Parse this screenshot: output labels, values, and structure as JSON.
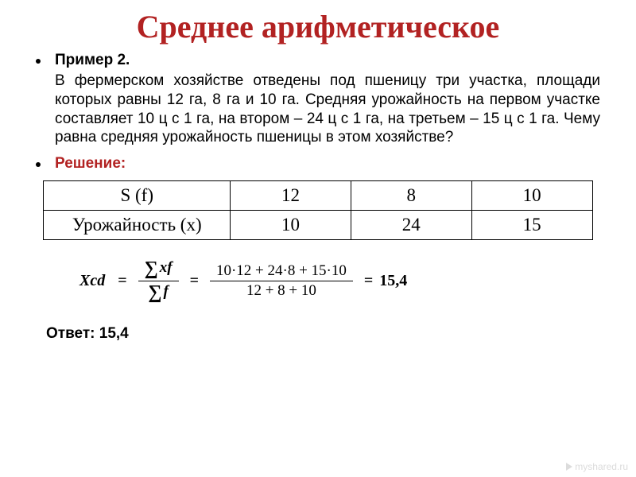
{
  "title": "Среднее арифметическое",
  "example_label": "Пример 2.",
  "body_text": "В фермерском хозяйстве отведены под пшеницу три участка, площади которых равны 12 га, 8 га и 10 га. Средняя урожайность на первом участке составляет 10 ц с 1 га, на втором – 24 ц с 1 га, на третьем – 15 ц с 1 га. Чему равна средняя урожайность пшеницы в этом хозяйстве?",
  "solution_label": "Решение:",
  "table": {
    "rows": [
      {
        "head": "S (f)",
        "cells": [
          "12",
          "8",
          "10"
        ]
      },
      {
        "head": "Урожайность (x)",
        "cells": [
          "10",
          "24",
          "15"
        ]
      }
    ],
    "col_widths_pct": [
      34,
      22,
      22,
      22
    ]
  },
  "formula": {
    "lhs": "Xcd",
    "sigma_num": "xf",
    "sigma_den": "f",
    "calc_num": "10·12 + 24·8 + 15·10",
    "calc_den": "12 + 8 + 10",
    "result": "15,4"
  },
  "answer_label": "Ответ:",
  "answer_value": "15,4",
  "watermark": "myshared.ru",
  "colors": {
    "title": "#b22222",
    "text": "#000000",
    "border": "#000000",
    "background": "#ffffff",
    "watermark": "#dcdcdc"
  },
  "fonts": {
    "title_family": "Times New Roman",
    "title_size_pt": 30,
    "body_family": "Arial",
    "body_size_pt": 14,
    "table_family": "Times New Roman",
    "table_size_pt": 17
  }
}
